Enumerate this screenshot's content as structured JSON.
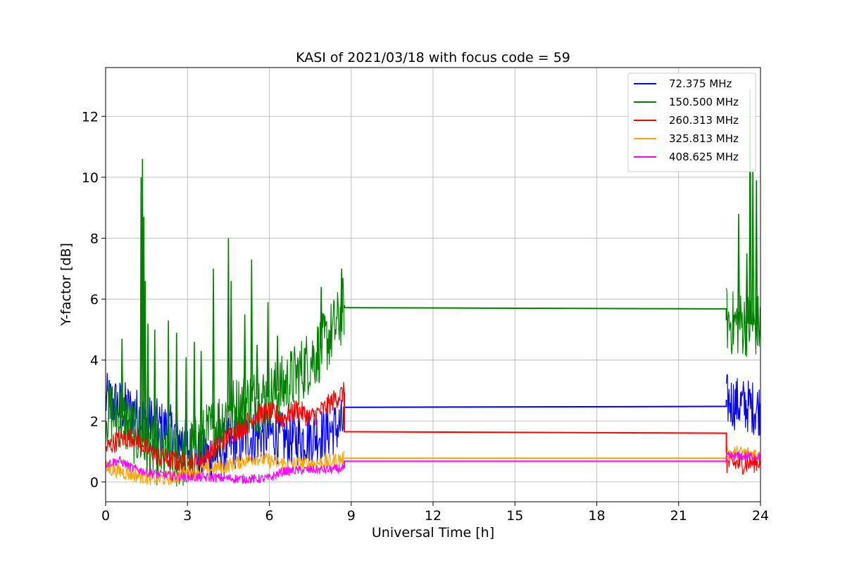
{
  "chart_data": {
    "type": "line",
    "title": "KASI of 2021/03/18 with focus code = 59",
    "xlabel": "Universal Time [h]",
    "ylabel": "Y-factor [dB]",
    "xlim": [
      0,
      24
    ],
    "ylim": [
      -0.65,
      13.6
    ],
    "xticks": [
      0,
      3,
      6,
      9,
      12,
      15,
      18,
      21,
      24
    ],
    "xtick_labels": [
      "0",
      "3",
      "6",
      "9",
      "12",
      "15",
      "18",
      "21",
      "24"
    ],
    "yticks": [
      0,
      2,
      4,
      6,
      8,
      10,
      12
    ],
    "ytick_labels": [
      "0",
      "2",
      "4",
      "6",
      "8",
      "10",
      "12"
    ],
    "grid": true,
    "legend_position": "top-right",
    "series": [
      {
        "name": " 72.375 MHz",
        "color": "#0000ff",
        "x": [
          0,
          0.5,
          1.0,
          1.5,
          2.0,
          2.5,
          3.0,
          3.5,
          4.0,
          4.5,
          5.0,
          5.5,
          6.0,
          6.5,
          7.0,
          7.5,
          8.0,
          8.5,
          8.75,
          8.75,
          22.75,
          22.75,
          23.0,
          23.5,
          24.0
        ],
        "y": [
          2.7,
          2.5,
          2.3,
          2.0,
          1.8,
          1.6,
          1.1,
          0.8,
          0.9,
          1.2,
          1.4,
          1.5,
          1.6,
          1.4,
          1.4,
          1.5,
          1.6,
          1.8,
          1.9,
          2.45,
          2.48,
          2.7,
          2.6,
          2.5,
          2.4
        ],
        "spread": 0.9
      },
      {
        "name": "150.500 MHz",
        "color": "#008000",
        "x": [
          0,
          0.5,
          1.0,
          1.5,
          2.0,
          2.5,
          3.0,
          3.5,
          4.0,
          4.5,
          5.0,
          5.5,
          6.0,
          6.5,
          7.0,
          7.5,
          8.0,
          8.5,
          8.75,
          8.75,
          22.75,
          22.75,
          23.0,
          23.5,
          24.0
        ],
        "y": [
          2.3,
          2.2,
          1.7,
          1.2,
          0.9,
          0.8,
          0.9,
          1.3,
          1.8,
          2.3,
          2.5,
          2.7,
          2.8,
          3.1,
          3.5,
          4.0,
          4.5,
          5.2,
          5.8,
          5.72,
          5.68,
          5.3,
          5.2,
          5.2,
          5.1
        ],
        "spread": 1.1,
        "spikes": [
          {
            "x": 0.6,
            "y": 4.7
          },
          {
            "x": 1.3,
            "y": 10.0
          },
          {
            "x": 1.35,
            "y": 10.6
          },
          {
            "x": 1.4,
            "y": 8.7
          },
          {
            "x": 1.45,
            "y": 6.6
          },
          {
            "x": 1.55,
            "y": 5.2
          },
          {
            "x": 1.8,
            "y": 5.0
          },
          {
            "x": 2.3,
            "y": 5.3
          },
          {
            "x": 2.6,
            "y": 4.9
          },
          {
            "x": 2.95,
            "y": 4.1
          },
          {
            "x": 3.25,
            "y": 4.6
          },
          {
            "x": 3.5,
            "y": 4.3
          },
          {
            "x": 3.95,
            "y": 7.0
          },
          {
            "x": 4.5,
            "y": 8.0
          },
          {
            "x": 4.6,
            "y": 6.6
          },
          {
            "x": 5.1,
            "y": 5.5
          },
          {
            "x": 5.35,
            "y": 7.3
          },
          {
            "x": 5.55,
            "y": 4.5
          },
          {
            "x": 5.95,
            "y": 5.9
          },
          {
            "x": 6.3,
            "y": 4.8
          },
          {
            "x": 7.9,
            "y": 6.4
          },
          {
            "x": 8.65,
            "y": 7.0
          },
          {
            "x": 23.2,
            "y": 8.8
          },
          {
            "x": 23.5,
            "y": 7.5
          },
          {
            "x": 23.62,
            "y": 12.9
          },
          {
            "x": 23.72,
            "y": 10.3
          },
          {
            "x": 23.85,
            "y": 9.9
          }
        ]
      },
      {
        "name": "260.313 MHz",
        "color": "#ff0000",
        "x": [
          0,
          0.5,
          1.0,
          1.5,
          2.0,
          2.5,
          3.0,
          3.5,
          4.0,
          4.5,
          5.0,
          5.5,
          6.0,
          6.5,
          7.0,
          7.5,
          8.0,
          8.5,
          8.75,
          8.75,
          22.75,
          22.75,
          23.0,
          23.5,
          24.0
        ],
        "y": [
          1.1,
          1.4,
          1.5,
          1.1,
          0.8,
          0.7,
          0.6,
          0.7,
          1.1,
          1.5,
          1.8,
          2.2,
          2.3,
          2.1,
          2.4,
          2.1,
          2.4,
          2.8,
          2.95,
          1.65,
          1.6,
          0.6,
          0.6,
          0.6,
          0.7
        ],
        "spread": 0.35
      },
      {
        "name": "325.813 MHz",
        "color": "#ffa500",
        "x": [
          0,
          0.5,
          1.0,
          1.5,
          2.0,
          2.5,
          3.0,
          3.5,
          4.0,
          4.5,
          5.0,
          5.5,
          6.0,
          6.5,
          7.0,
          7.5,
          8.0,
          8.5,
          8.75,
          8.75,
          22.75,
          22.75,
          23.0,
          23.5,
          24.0
        ],
        "y": [
          0.45,
          0.35,
          0.25,
          0.15,
          0.1,
          0.15,
          0.3,
          0.4,
          0.45,
          0.55,
          0.7,
          0.8,
          0.7,
          0.6,
          0.6,
          0.6,
          0.65,
          0.72,
          0.78,
          0.78,
          0.78,
          0.95,
          0.95,
          0.95,
          0.9
        ],
        "spread": 0.25
      },
      {
        "name": "408.625 MHz",
        "color": "#ff00ff",
        "x": [
          0,
          0.5,
          1.0,
          1.5,
          2.0,
          2.5,
          3.0,
          3.5,
          4.0,
          4.5,
          5.0,
          5.5,
          6.0,
          6.5,
          7.0,
          7.5,
          8.0,
          8.5,
          8.75,
          8.75,
          22.75,
          22.75,
          23.0,
          23.5,
          24.0
        ],
        "y": [
          0.6,
          0.7,
          0.45,
          0.32,
          0.25,
          0.2,
          0.15,
          0.15,
          0.15,
          0.12,
          0.1,
          0.1,
          0.12,
          0.35,
          0.38,
          0.4,
          0.4,
          0.42,
          0.45,
          0.68,
          0.68,
          0.85,
          0.85,
          0.85,
          0.85
        ],
        "spread": 0.15
      }
    ]
  }
}
